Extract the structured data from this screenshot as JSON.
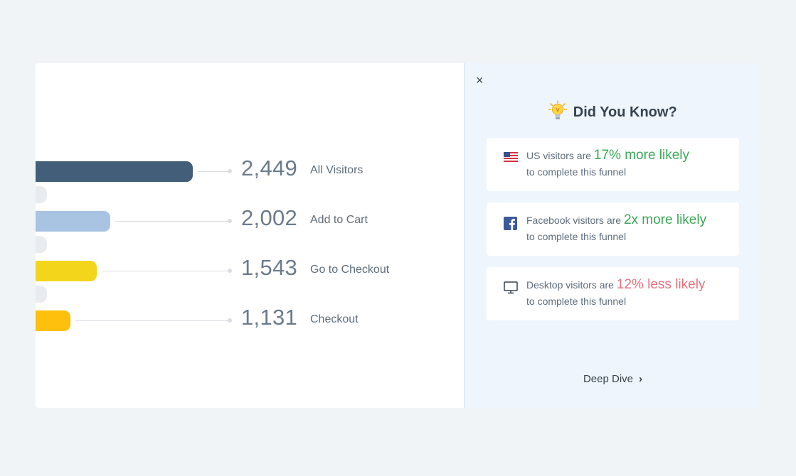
{
  "funnel": {
    "steps": [
      {
        "value": "2,449",
        "label": "All Visitors",
        "color": "#425e78"
      },
      {
        "value": "2,002",
        "label": "Add to Cart",
        "color": "#a9c4e2"
      },
      {
        "value": "1,543",
        "label": "Go to Checkout",
        "color": "#f3d51c"
      },
      {
        "value": "1,131",
        "label": "Checkout",
        "color": "#fdc00d"
      }
    ],
    "drop_labels": [
      "",
      "%",
      "%"
    ]
  },
  "panel": {
    "close_glyph": "×",
    "title": "Did You Know?",
    "tips": [
      {
        "icon": "us-flag-icon",
        "prefix": "US visitors are ",
        "highlight": "17% more likely",
        "sentiment": "positive",
        "suffix": "to complete this funnel"
      },
      {
        "icon": "facebook-icon",
        "prefix": "Facebook visitors are ",
        "highlight": "2x more likely",
        "sentiment": "positive",
        "suffix": "to complete this funnel"
      },
      {
        "icon": "desktop-icon",
        "prefix": "Desktop visitors are ",
        "highlight": "12% less likely",
        "sentiment": "negative",
        "suffix": "to complete this funnel"
      }
    ],
    "deep_dive_label": "Deep Dive",
    "deep_dive_chevron": "›"
  },
  "colors": {
    "positive": "#3aa856",
    "negative": "#e8717e",
    "sidebar_bg": "#eef5fd"
  }
}
